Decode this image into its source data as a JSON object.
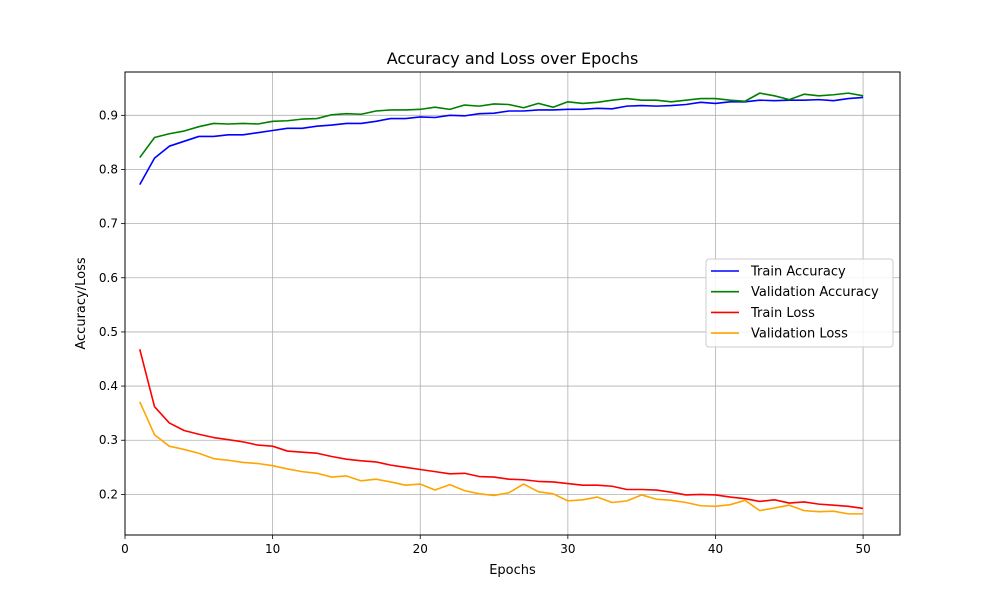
{
  "chart_data": {
    "type": "line",
    "title": "Accuracy and Loss over Epochs",
    "xlabel": "Epochs",
    "ylabel": "Accuracy/Loss",
    "xlim": [
      0,
      52.5
    ],
    "ylim": [
      0.125,
      0.98
    ],
    "xticks": [
      0,
      10,
      20,
      30,
      40,
      50
    ],
    "yticks": [
      0.2,
      0.3,
      0.4,
      0.5,
      0.6,
      0.7,
      0.8,
      0.9
    ],
    "grid": true,
    "legend_position": "center-right",
    "x": [
      1,
      2,
      3,
      4,
      5,
      6,
      7,
      8,
      9,
      10,
      11,
      12,
      13,
      14,
      15,
      16,
      17,
      18,
      19,
      20,
      21,
      22,
      23,
      24,
      25,
      26,
      27,
      28,
      29,
      30,
      31,
      32,
      33,
      34,
      35,
      36,
      37,
      38,
      39,
      40,
      41,
      42,
      43,
      44,
      45,
      46,
      47,
      48,
      49,
      50
    ],
    "series": [
      {
        "name": "Train Accuracy",
        "color": "#0000ff",
        "values": [
          0.772,
          0.821,
          0.843,
          0.852,
          0.861,
          0.861,
          0.864,
          0.864,
          0.868,
          0.872,
          0.876,
          0.876,
          0.88,
          0.882,
          0.885,
          0.885,
          0.889,
          0.894,
          0.894,
          0.897,
          0.896,
          0.9,
          0.899,
          0.903,
          0.904,
          0.908,
          0.908,
          0.91,
          0.91,
          0.911,
          0.911,
          0.913,
          0.912,
          0.917,
          0.918,
          0.917,
          0.918,
          0.92,
          0.924,
          0.922,
          0.925,
          0.925,
          0.928,
          0.927,
          0.928,
          0.928,
          0.929,
          0.927,
          0.931,
          0.933
        ]
      },
      {
        "name": "Validation Accuracy",
        "color": "#008000",
        "values": [
          0.822,
          0.859,
          0.866,
          0.871,
          0.879,
          0.885,
          0.884,
          0.885,
          0.884,
          0.889,
          0.89,
          0.893,
          0.894,
          0.901,
          0.903,
          0.902,
          0.908,
          0.91,
          0.91,
          0.911,
          0.915,
          0.911,
          0.919,
          0.917,
          0.921,
          0.92,
          0.914,
          0.922,
          0.915,
          0.925,
          0.922,
          0.924,
          0.928,
          0.931,
          0.928,
          0.928,
          0.925,
          0.928,
          0.931,
          0.931,
          0.928,
          0.926,
          0.941,
          0.936,
          0.929,
          0.939,
          0.936,
          0.938,
          0.941,
          0.936
        ]
      },
      {
        "name": "Train Loss",
        "color": "#ff0000",
        "values": [
          0.468,
          0.362,
          0.332,
          0.318,
          0.311,
          0.305,
          0.301,
          0.297,
          0.291,
          0.289,
          0.28,
          0.278,
          0.276,
          0.27,
          0.265,
          0.262,
          0.26,
          0.254,
          0.25,
          0.246,
          0.242,
          0.238,
          0.239,
          0.233,
          0.232,
          0.228,
          0.227,
          0.224,
          0.223,
          0.22,
          0.217,
          0.217,
          0.215,
          0.209,
          0.209,
          0.208,
          0.204,
          0.199,
          0.2,
          0.199,
          0.195,
          0.192,
          0.187,
          0.19,
          0.184,
          0.186,
          0.182,
          0.18,
          0.178,
          0.174
        ]
      },
      {
        "name": "Validation Loss",
        "color": "#ffa500",
        "values": [
          0.371,
          0.31,
          0.289,
          0.283,
          0.276,
          0.266,
          0.263,
          0.259,
          0.257,
          0.253,
          0.247,
          0.242,
          0.239,
          0.232,
          0.234,
          0.225,
          0.228,
          0.223,
          0.217,
          0.219,
          0.208,
          0.218,
          0.207,
          0.201,
          0.198,
          0.203,
          0.219,
          0.205,
          0.201,
          0.188,
          0.19,
          0.195,
          0.185,
          0.188,
          0.199,
          0.191,
          0.189,
          0.185,
          0.179,
          0.178,
          0.181,
          0.189,
          0.17,
          0.175,
          0.18,
          0.17,
          0.168,
          0.169,
          0.164,
          0.164
        ]
      }
    ]
  }
}
